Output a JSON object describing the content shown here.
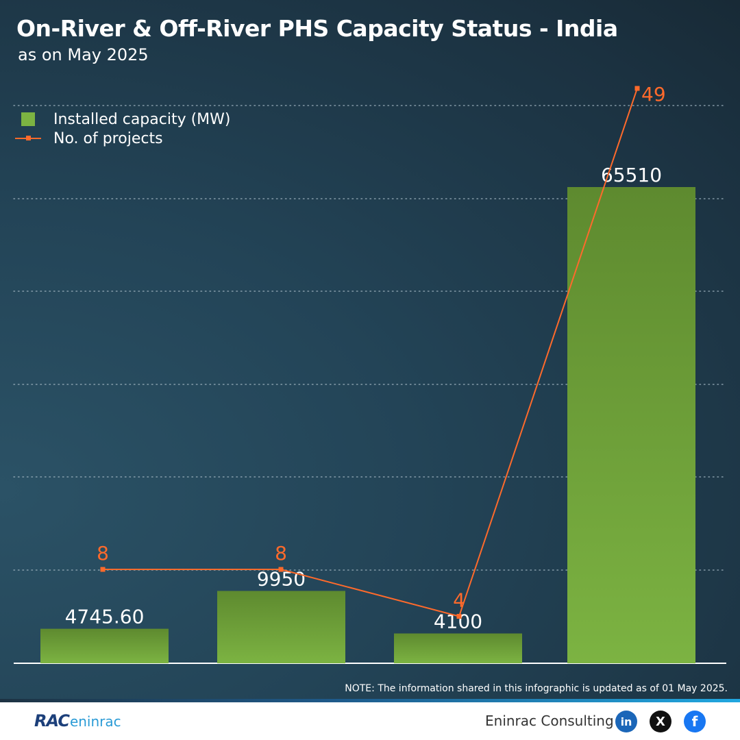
{
  "header": {
    "title": "On-River & Off-River PHS Capacity Status - India",
    "subtitle": "as on May 2025"
  },
  "legend": {
    "bar_label": "Installed capacity (MW)",
    "line_label": "No. of projects"
  },
  "chart_data": {
    "type": "bar",
    "title": "On-River & Off-River PHS Capacity Status - India",
    "subtitle": "as on May 2025",
    "categories": [
      "",
      "",
      "",
      ""
    ],
    "series": [
      {
        "name": "Installed capacity (MW)",
        "type": "bar",
        "values": [
          4745.6,
          9950,
          4100,
          65510
        ],
        "labels": [
          "4745.60",
          "9950",
          "4100",
          "65510"
        ],
        "color": "#7cb342"
      },
      {
        "name": "No. of projects",
        "type": "line",
        "values": [
          8,
          8,
          4,
          49
        ],
        "labels": [
          "8",
          "8",
          "4",
          "49"
        ],
        "color": "#ff6a2b"
      }
    ],
    "grid": true,
    "legend_position": "top-left"
  },
  "note": "NOTE: The information shared in this infographic is updated as of 01 May 2025.",
  "footer": {
    "logo_rac": "RAC",
    "logo_eninrac": "eninrac",
    "brand": "Eninrac Consulting",
    "social": [
      {
        "name": "linkedin",
        "glyph": "in"
      },
      {
        "name": "x",
        "glyph": "X"
      },
      {
        "name": "facebook",
        "glyph": "f"
      }
    ]
  },
  "colors": {
    "bar_top": "#5e8a2f",
    "bar_bottom": "#7cb342",
    "line": "#ff6a2b",
    "background": "#1f3a4a"
  }
}
